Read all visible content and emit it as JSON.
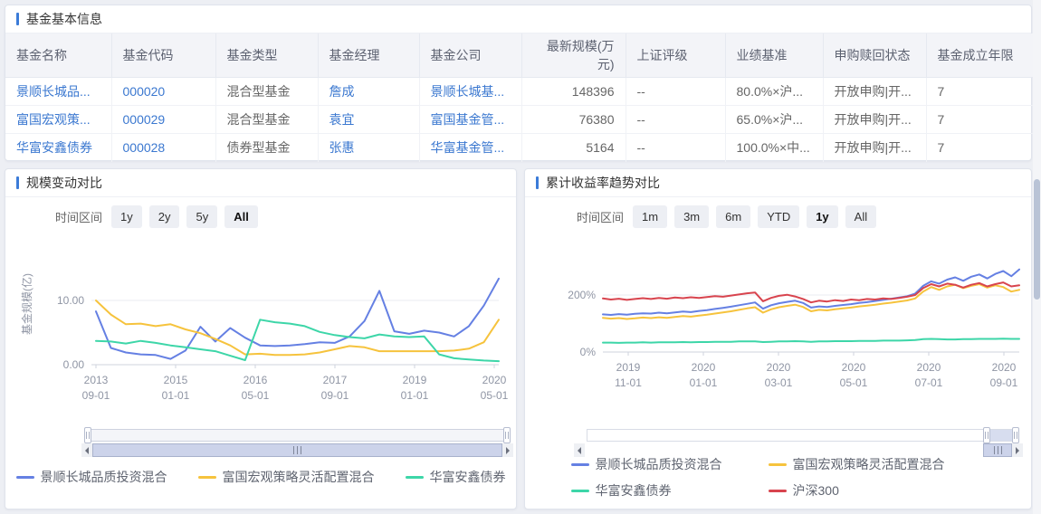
{
  "fund_table": {
    "title": "基金基本信息",
    "columns": [
      {
        "key": "name",
        "label": "基金名称",
        "type": "link",
        "align": "left"
      },
      {
        "key": "code",
        "label": "基金代码",
        "type": "link",
        "align": "left"
      },
      {
        "key": "type",
        "label": "基金类型",
        "type": "text",
        "align": "left"
      },
      {
        "key": "manager",
        "label": "基金经理",
        "type": "link",
        "align": "left"
      },
      {
        "key": "company",
        "label": "基金公司",
        "type": "link",
        "align": "left"
      },
      {
        "key": "scale",
        "label": "最新规模(万元)",
        "type": "text",
        "align": "right"
      },
      {
        "key": "rating",
        "label": "上证评级",
        "type": "text",
        "align": "left"
      },
      {
        "key": "benchmark",
        "label": "业绩基准",
        "type": "text",
        "align": "left"
      },
      {
        "key": "status",
        "label": "申购赎回状态",
        "type": "text",
        "align": "left"
      },
      {
        "key": "years",
        "label": "基金成立年限",
        "type": "text",
        "align": "left"
      }
    ],
    "rows": [
      {
        "name": "景顺长城品...",
        "code": "000020",
        "type": "混合型基金",
        "manager": "詹成",
        "company": "景顺长城基...",
        "scale": "148396",
        "rating": "--",
        "benchmark": "80.0%×沪...",
        "status": "开放申购|开...",
        "years": "7"
      },
      {
        "name": "富国宏观策...",
        "code": "000029",
        "type": "混合型基金",
        "manager": "袁宜",
        "company": "富国基金管...",
        "scale": "76380",
        "rating": "--",
        "benchmark": "65.0%×沪...",
        "status": "开放申购|开...",
        "years": "7"
      },
      {
        "name": "华富安鑫债券",
        "code": "000028",
        "type": "债券型基金",
        "manager": "张惠",
        "company": "华富基金管...",
        "scale": "5164",
        "rating": "--",
        "benchmark": "100.0%×中...",
        "status": "开放申购|开...",
        "years": "7"
      }
    ]
  },
  "scale_panel": {
    "title": "规模变动对比",
    "time_label": "时间区间",
    "buttons": [
      {
        "label": "1y",
        "active": false
      },
      {
        "label": "2y",
        "active": false
      },
      {
        "label": "5y",
        "active": false
      },
      {
        "label": "All",
        "active": true
      }
    ]
  },
  "return_panel": {
    "title": "累计收益率趋势对比",
    "time_label": "时间区间",
    "buttons": [
      {
        "label": "1m",
        "active": false
      },
      {
        "label": "3m",
        "active": false
      },
      {
        "label": "6m",
        "active": false
      },
      {
        "label": "YTD",
        "active": false
      },
      {
        "label": "1y",
        "active": true
      },
      {
        "label": "All",
        "active": false
      }
    ]
  },
  "colors": {
    "accent": "#3b7bd8",
    "link": "#3b78d0",
    "series_blue": "#6580e3",
    "series_yellow": "#f6c33d",
    "series_green": "#3dd6a8",
    "series_red": "#d8444e"
  },
  "chart_data": [
    {
      "type": "line",
      "title": "规模变动对比",
      "ylabel": "基金规模(亿)",
      "ylim": [
        0,
        17
      ],
      "grid": "single line at 10.00",
      "legend_position": "bottom",
      "yticks": [
        {
          "value": 0,
          "label": "0.00"
        },
        {
          "value": 10,
          "label": "10.00"
        }
      ],
      "x_unit": "quarter",
      "x": [
        "2013-09",
        "2013-12",
        "2014-03",
        "2014-06",
        "2014-09",
        "2014-12",
        "2015-03",
        "2015-06",
        "2015-09",
        "2015-12",
        "2016-03",
        "2016-06",
        "2016-09",
        "2016-12",
        "2017-03",
        "2017-06",
        "2017-09",
        "2017-12",
        "2018-03",
        "2018-06",
        "2018-09",
        "2018-12",
        "2019-03",
        "2019-06",
        "2019-09",
        "2019-12",
        "2020-03",
        "2020-06"
      ],
      "xtick_labels": [
        [
          "2013",
          "09-01"
        ],
        [
          "2015",
          "01-01"
        ],
        [
          "2016",
          "05-01"
        ],
        [
          "2017",
          "09-01"
        ],
        [
          "2019",
          "01-01"
        ],
        [
          "2020",
          "05-01"
        ]
      ],
      "series": [
        {
          "name": "景顺长城品质投资混合",
          "color": "#6580e3",
          "values": [
            8.3,
            2.6,
            1.9,
            1.6,
            1.5,
            0.9,
            2.2,
            5.9,
            3.6,
            5.7,
            4.2,
            3.0,
            2.9,
            3.0,
            3.2,
            3.5,
            3.4,
            4.4,
            6.8,
            11.5,
            5.2,
            4.8,
            5.3,
            5.0,
            4.4,
            6.0,
            9.2,
            13.4
          ]
        },
        {
          "name": "富国宏观策略灵活配置混合",
          "color": "#f6c33d",
          "values": [
            10.0,
            7.8,
            6.3,
            6.4,
            6.0,
            6.3,
            5.5,
            4.9,
            4.0,
            3.0,
            1.6,
            1.7,
            1.5,
            1.5,
            1.6,
            1.9,
            2.4,
            2.9,
            2.7,
            2.1,
            2.1,
            2.1,
            2.1,
            2.1,
            2.2,
            2.5,
            3.5,
            7.0
          ]
        },
        {
          "name": "华富安鑫债券",
          "color": "#3dd6a8",
          "values": [
            3.7,
            3.6,
            3.3,
            3.7,
            3.4,
            3.0,
            2.7,
            2.4,
            2.1,
            1.4,
            0.7,
            7.0,
            6.6,
            6.4,
            6.0,
            5.1,
            4.6,
            4.3,
            4.1,
            4.7,
            4.4,
            4.3,
            4.4,
            1.6,
            1.0,
            0.8,
            0.65,
            0.55
          ]
        }
      ]
    },
    {
      "type": "line",
      "title": "累计收益率趋势对比",
      "ylabel": "",
      "ylim": [
        0,
        380
      ],
      "grid": "single line at 200%",
      "legend_position": "bottom",
      "yticks": [
        {
          "value": 0,
          "label": "0%"
        },
        {
          "value": 200,
          "label": "200%"
        }
      ],
      "x_unit": "week",
      "x_range": [
        "2019-09-21",
        "2020-09-18"
      ],
      "xtick_labels": [
        [
          "2019",
          "11-01"
        ],
        [
          "2020",
          "01-01"
        ],
        [
          "2020",
          "03-01"
        ],
        [
          "2020",
          "05-01"
        ],
        [
          "2020",
          "07-01"
        ],
        [
          "2020",
          "09-01"
        ]
      ],
      "series": [
        {
          "name": "景顺长城品质投资混合",
          "color": "#6580e3",
          "values": [
            132,
            130,
            133,
            131,
            134,
            136,
            135,
            138,
            136,
            139,
            142,
            140,
            144,
            147,
            151,
            155,
            159,
            164,
            169,
            174,
            152,
            164,
            171,
            176,
            180,
            172,
            156,
            160,
            158,
            162,
            165,
            168,
            172,
            175,
            179,
            183,
            187,
            191,
            196,
            205,
            232,
            248,
            240,
            254,
            262,
            250,
            264,
            272,
            258,
            274,
            284,
            266,
            290
          ]
        },
        {
          "name": "富国宏观策略灵活配置混合",
          "color": "#f6c33d",
          "values": [
            120,
            117,
            119,
            116,
            118,
            121,
            119,
            122,
            120,
            123,
            126,
            124,
            128,
            131,
            135,
            139,
            143,
            148,
            153,
            157,
            138,
            150,
            157,
            162,
            166,
            158,
            143,
            148,
            146,
            150,
            153,
            156,
            160,
            163,
            166,
            170,
            173,
            177,
            181,
            188,
            212,
            228,
            218,
            230,
            236,
            224,
            232,
            238,
            226,
            234,
            228,
            212,
            218
          ]
        },
        {
          "name": "华富安鑫债券",
          "color": "#3dd6a8",
          "values": [
            33,
            33,
            32,
            33,
            33,
            34,
            33,
            34,
            34,
            34,
            35,
            34,
            35,
            35,
            36,
            36,
            36,
            37,
            37,
            37,
            35,
            36,
            37,
            37,
            38,
            37,
            36,
            37,
            37,
            38,
            38,
            38,
            39,
            39,
            39,
            40,
            40,
            40,
            41,
            42,
            45,
            46,
            45,
            44,
            44,
            45,
            45,
            46,
            46,
            46,
            47,
            46,
            46
          ]
        },
        {
          "name": "沪深300",
          "color": "#d8444e",
          "values": [
            188,
            184,
            187,
            183,
            186,
            189,
            186,
            190,
            187,
            191,
            189,
            192,
            190,
            193,
            196,
            194,
            198,
            202,
            206,
            209,
            178,
            190,
            197,
            201,
            195,
            186,
            174,
            180,
            177,
            182,
            179,
            184,
            182,
            186,
            184,
            188,
            186,
            190,
            194,
            200,
            224,
            238,
            230,
            240,
            236,
            226,
            236,
            242,
            230,
            238,
            244,
            230,
            234
          ]
        }
      ]
    }
  ]
}
